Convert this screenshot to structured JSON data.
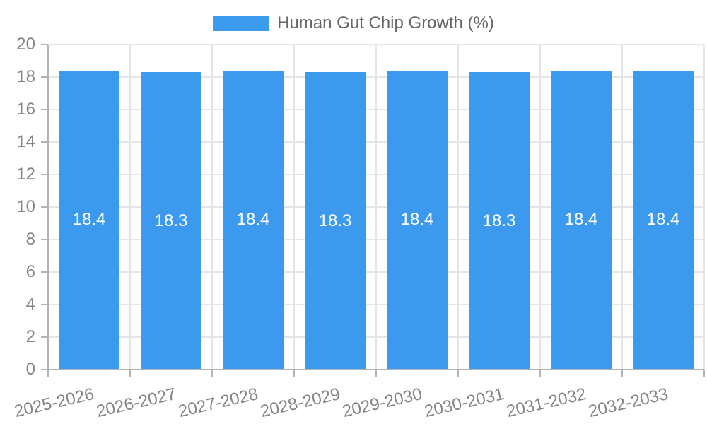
{
  "page": {
    "background": "#ffffff"
  },
  "legend": {
    "position": "top-center"
  },
  "chart_data": {
    "type": "bar",
    "title": "",
    "categories": [
      "2025-2026",
      "2026-2027",
      "2027-2028",
      "2028-2029",
      "2029-2030",
      "2030-2031",
      "2031-2032",
      "2032-2033"
    ],
    "series": [
      {
        "name": "Human Gut Chip Growth (%)",
        "values": [
          18.4,
          18.3,
          18.4,
          18.3,
          18.4,
          18.3,
          18.4,
          18.4
        ]
      }
    ],
    "value_label_decimals": 1,
    "xlabel": "",
    "ylabel": "",
    "ylim": [
      0,
      20
    ],
    "ytick_step": 2,
    "grid": true,
    "legend_position": "top",
    "x_label_rotation_deg": -13,
    "colors": {
      "bar": "#3B99EE",
      "value_label": "#ffffff",
      "grid": "#e5e5e8",
      "axis": "#b3b3b3",
      "tick_label": "#858585",
      "legend_text": "#666666"
    }
  }
}
